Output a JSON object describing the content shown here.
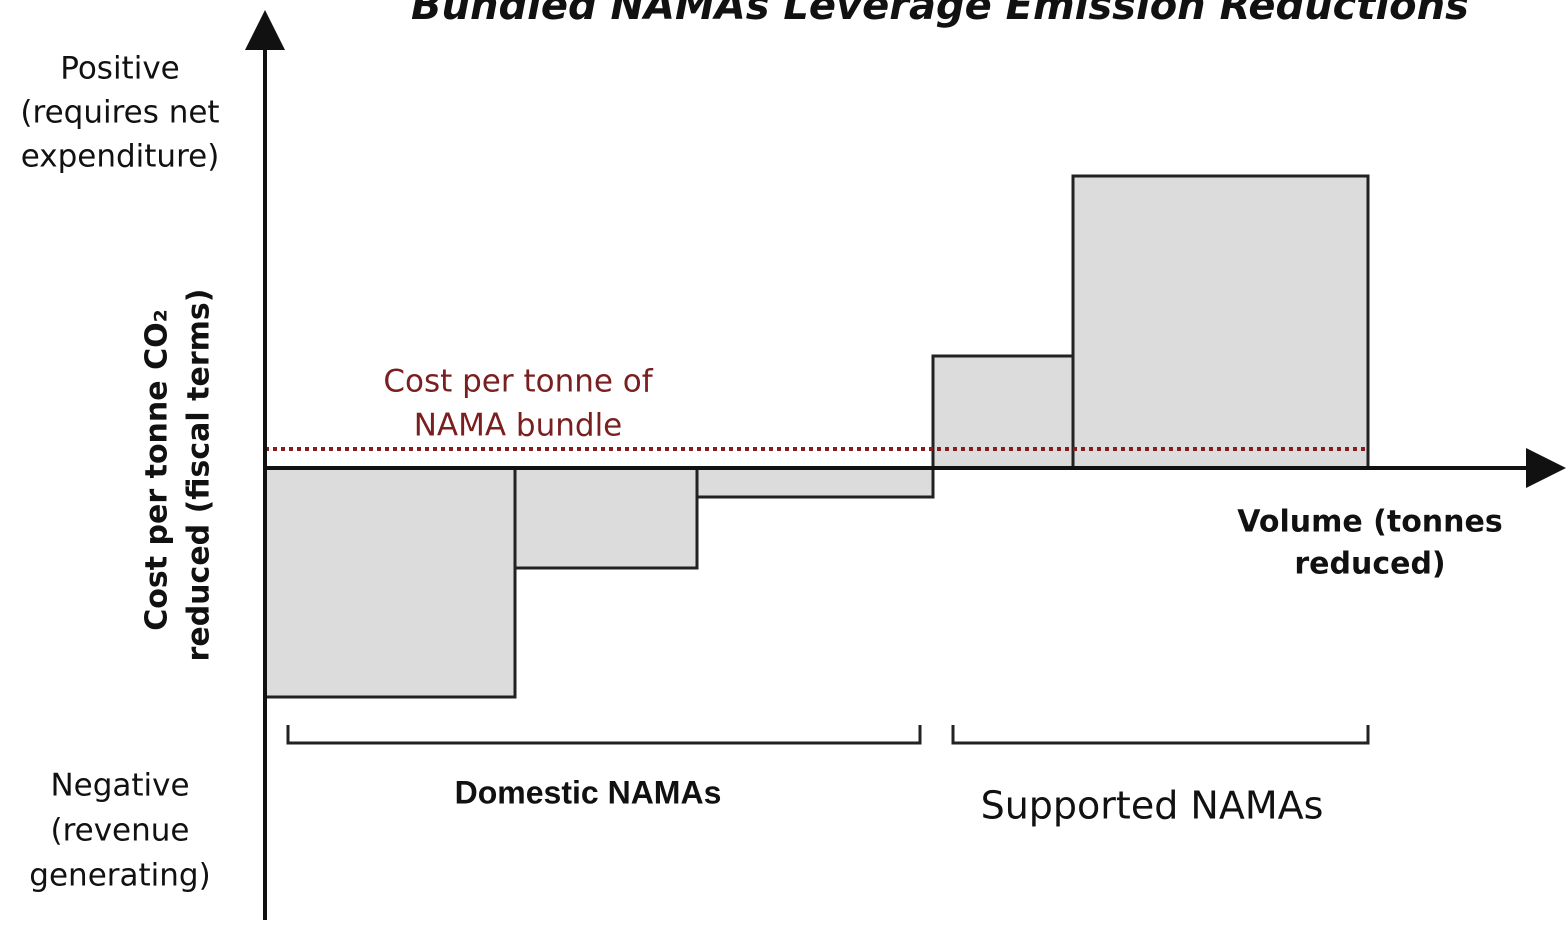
{
  "title": "Bundled NAMAs Leverage Emission Reductions",
  "y_axis": {
    "positive": [
      "Positive",
      "(requires net",
      "expenditure)"
    ],
    "negative": [
      "Negative",
      "(revenue",
      "generating)"
    ],
    "label": [
      "Cost per tonne CO₂",
      "reduced (fiscal terms)"
    ]
  },
  "x_axis_label": [
    "Volume (tonnes",
    "reduced)"
  ],
  "bundle_line_label": [
    "Cost per tonne of",
    "NAMA bundle"
  ],
  "groups": [
    "Domestic NAMAs",
    "Supported NAMAs"
  ]
}
